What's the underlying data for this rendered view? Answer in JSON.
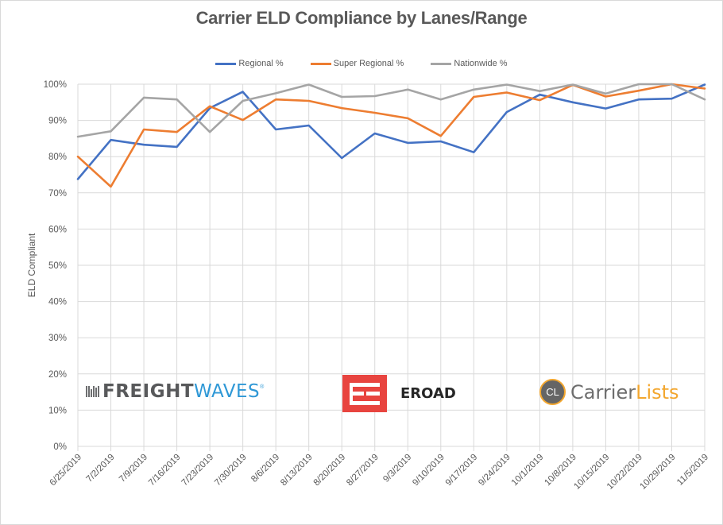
{
  "chart_data": {
    "type": "line",
    "title": "Carrier ELD Compliance by Lanes/Range",
    "xlabel": "",
    "ylabel": "ELD Compliant",
    "ylim": [
      0,
      100
    ],
    "y_ticks": [
      "0%",
      "10%",
      "20%",
      "30%",
      "40%",
      "50%",
      "60%",
      "70%",
      "80%",
      "90%",
      "100%"
    ],
    "grid": true,
    "legend_position": "top",
    "categories": [
      "6/25/2019",
      "7/2/2019",
      "7/9/2019",
      "7/16/2019",
      "7/23/2019",
      "7/30/2019",
      "8/6/2019",
      "8/13/2019",
      "8/20/2019",
      "8/27/2019",
      "9/3/2019",
      "9/10/2019",
      "9/17/2019",
      "9/24/2019",
      "10/1/2019",
      "10/8/2019",
      "10/15/2019",
      "10/22/2019",
      "10/29/2019",
      "11/5/2019"
    ],
    "series": [
      {
        "name": "Regional %",
        "color": "#4472c4",
        "values": [
          73.8,
          84.6,
          83.3,
          82.7,
          93.4,
          97.9,
          87.5,
          88.6,
          79.6,
          86.4,
          83.8,
          84.2,
          81.2,
          92.3,
          97.1,
          95.0,
          93.3,
          95.8,
          96.0,
          99.9
        ]
      },
      {
        "name": "Super Regional %",
        "color": "#ed7d31",
        "values": [
          80.0,
          71.7,
          87.5,
          86.8,
          93.9,
          90.1,
          95.8,
          95.4,
          93.4,
          92.1,
          90.6,
          85.7,
          96.5,
          97.7,
          95.6,
          99.8,
          96.6,
          98.2,
          100.0,
          98.8
        ]
      },
      {
        "name": "Nationwide %",
        "color": "#a5a5a5",
        "values": [
          85.5,
          87.0,
          96.3,
          95.8,
          86.8,
          95.4,
          97.5,
          99.9,
          96.5,
          96.7,
          98.5,
          95.8,
          98.5,
          99.9,
          98.1,
          99.9,
          97.4,
          100.0,
          100.0,
          95.8
        ]
      }
    ]
  },
  "logos": {
    "freightwaves": {
      "part1": "FREIGHT",
      "part2": "WAVES",
      "mark": "®"
    },
    "eroad": {
      "text": "EROAD"
    },
    "carrierlists": {
      "badge": "CL",
      "part1": "Carrier",
      "part2": "Lists"
    }
  }
}
